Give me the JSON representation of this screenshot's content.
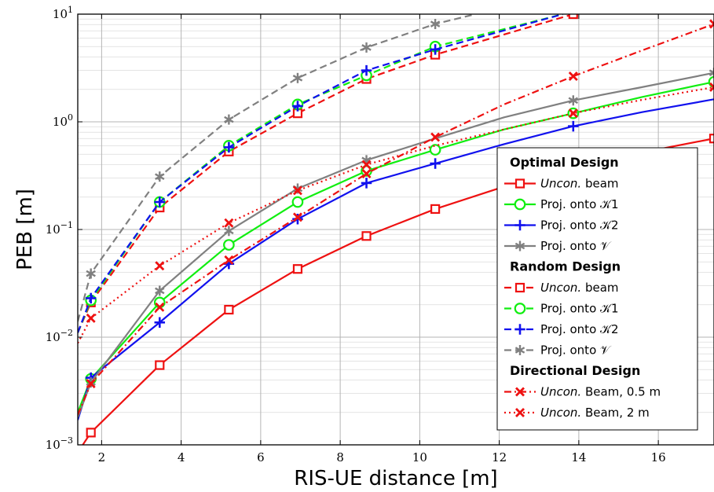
{
  "chart_data": {
    "type": "line",
    "xlabel": "RIS-UE distance [m]",
    "ylabel": "PEB [m]",
    "xlim": [
      1.4,
      17.4
    ],
    "ylim": [
      0.001,
      10
    ],
    "yscale": "log",
    "grid": "major and minor",
    "legend_placement": "bottom-right",
    "x_ticks": [
      "2",
      "4",
      "6",
      "8",
      "10",
      "12",
      "14",
      "16"
    ],
    "y_ticks": [
      {
        "base": "10",
        "exp": "−3"
      },
      {
        "base": "10",
        "exp": "−2"
      },
      {
        "base": "10",
        "exp": "−1"
      },
      {
        "base": "10",
        "exp": "0"
      },
      {
        "base": "10",
        "exp": "1"
      }
    ],
    "legend": [
      {
        "kind": "heading",
        "label": "Optimal Design"
      },
      {
        "kind": "entry",
        "label_italic": "Uncon.",
        "label": " beam",
        "series": 0
      },
      {
        "kind": "entry",
        "label": "Proj. onto 𝒦1",
        "series": 1
      },
      {
        "kind": "entry",
        "label": "Proj. onto 𝒦2",
        "series": 2
      },
      {
        "kind": "entry",
        "label": "Proj. onto 𝒱",
        "series": 3
      },
      {
        "kind": "heading",
        "label": "Random Design"
      },
      {
        "kind": "entry",
        "label_italic": "Uncon.",
        "label": " beam",
        "series": 4
      },
      {
        "kind": "entry",
        "label": "Proj. onto 𝒦1",
        "series": 5
      },
      {
        "kind": "entry",
        "label": "Proj. onto 𝒦2",
        "series": 6
      },
      {
        "kind": "entry",
        "label": "Proj. onto 𝒱",
        "series": 7
      },
      {
        "kind": "heading",
        "label": "Directional Design"
      },
      {
        "kind": "entry",
        "label_italic": "Uncon.",
        "label": " Beam, 0.5 m",
        "series": 8
      },
      {
        "kind": "entry",
        "label_italic": "Uncon.",
        "label": " Beam, 2 m",
        "series": 9
      }
    ],
    "series": [
      {
        "group": "Optimal Design",
        "color": "#ee1111",
        "dash": "solid",
        "marker": "square",
        "x": [
          1.4,
          1.73,
          3.46,
          5.2,
          6.93,
          8.66,
          10.39,
          12.12,
          13.86,
          15.59,
          17.4
        ],
        "y": [
          0.00085,
          0.0013,
          0.0055,
          0.018,
          0.043,
          0.087,
          0.155,
          0.25,
          0.37,
          0.52,
          0.7
        ],
        "markers": [
          1,
          2,
          3,
          4,
          5,
          6,
          10
        ]
      },
      {
        "group": "Optimal Design",
        "color": "#11ee11",
        "dash": "solid",
        "marker": "circle",
        "x": [
          1.4,
          1.73,
          3.46,
          5.2,
          6.93,
          8.66,
          10.39,
          12.12,
          13.86,
          15.59,
          17.4
        ],
        "y": [
          0.002,
          0.0041,
          0.021,
          0.072,
          0.18,
          0.35,
          0.55,
          0.85,
          1.2,
          1.7,
          2.35
        ],
        "markers": [
          1,
          2,
          3,
          4,
          5,
          6,
          8,
          10
        ]
      },
      {
        "group": "Optimal Design",
        "color": "#1111ee",
        "dash": "solid",
        "marker": "plus",
        "x": [
          1.4,
          1.73,
          3.46,
          5.2,
          6.93,
          8.66,
          10.39,
          12.12,
          13.86,
          15.59,
          17.4
        ],
        "y": [
          0.0017,
          0.0042,
          0.0137,
          0.048,
          0.125,
          0.27,
          0.41,
          0.62,
          0.91,
          1.23,
          1.62
        ],
        "markers": [
          1,
          2,
          3,
          4,
          5,
          6,
          8
        ]
      },
      {
        "group": "Optimal Design",
        "color": "#808080",
        "dash": "solid",
        "marker": "star",
        "x": [
          1.4,
          1.73,
          3.46,
          5.2,
          6.93,
          8.66,
          10.39,
          12.12,
          13.86,
          15.59,
          17.4
        ],
        "y": [
          0.0018,
          0.0038,
          0.027,
          0.097,
          0.24,
          0.44,
          0.7,
          1.1,
          1.58,
          2.1,
          2.85
        ],
        "markers": [
          1,
          2,
          3,
          4,
          5,
          8,
          10
        ]
      },
      {
        "group": "Random Design",
        "color": "#ee1111",
        "dash": "dashed",
        "marker": "square",
        "x": [
          1.4,
          1.73,
          3.46,
          5.2,
          6.93,
          8.66,
          10.39,
          13.86
        ],
        "y": [
          0.011,
          0.021,
          0.16,
          0.53,
          1.2,
          2.5,
          4.2,
          10.0
        ],
        "markers": [
          1,
          2,
          3,
          4,
          5,
          6,
          7
        ]
      },
      {
        "group": "Random Design",
        "color": "#11ee11",
        "dash": "dashed",
        "marker": "circle",
        "x": [
          1.4,
          1.73,
          3.46,
          5.2,
          6.93,
          8.66,
          10.39,
          13.6
        ],
        "y": [
          0.011,
          0.022,
          0.18,
          0.6,
          1.45,
          2.7,
          5.0,
          10.0
        ],
        "markers": [
          1,
          2,
          3,
          4,
          5,
          6
        ]
      },
      {
        "group": "Random Design",
        "color": "#1111ee",
        "dash": "dashed",
        "marker": "plus",
        "x": [
          1.4,
          1.73,
          3.46,
          5.2,
          6.93,
          8.66,
          10.39,
          13.6
        ],
        "y": [
          0.011,
          0.023,
          0.18,
          0.58,
          1.4,
          3.0,
          4.7,
          10.0
        ],
        "markers": [
          1,
          2,
          3,
          4,
          5,
          6
        ]
      },
      {
        "group": "Random Design",
        "color": "#808080",
        "dash": "dashed",
        "marker": "star",
        "x": [
          1.4,
          1.73,
          3.46,
          5.2,
          6.93,
          8.66,
          10.39,
          11.4
        ],
        "y": [
          0.014,
          0.039,
          0.31,
          1.05,
          2.55,
          4.9,
          8.1,
          10.0
        ],
        "markers": [
          1,
          2,
          3,
          4,
          5,
          6
        ]
      },
      {
        "group": "Directional Design",
        "color": "#ee1111",
        "dash": "dashdot",
        "marker": "x",
        "x": [
          1.4,
          1.73,
          3.46,
          5.2,
          6.93,
          8.66,
          10.39,
          12.12,
          13.86,
          15.59,
          17.4
        ],
        "y": [
          0.0019,
          0.0037,
          0.019,
          0.052,
          0.13,
          0.33,
          0.72,
          1.45,
          2.65,
          4.6,
          8.1
        ],
        "markers": [
          1,
          2,
          3,
          4,
          5,
          6,
          8,
          10
        ]
      },
      {
        "group": "Directional Design",
        "color": "#ee1111",
        "dash": "dotted",
        "marker": "x",
        "x": [
          1.4,
          1.73,
          3.46,
          5.2,
          6.93,
          8.66,
          10.39,
          12.12,
          13.86,
          15.59,
          17.4
        ],
        "y": [
          0.0088,
          0.015,
          0.046,
          0.115,
          0.23,
          0.4,
          0.6,
          0.85,
          1.2,
          1.6,
          2.1
        ],
        "markers": [
          1,
          2,
          3,
          4,
          5,
          8,
          10
        ]
      }
    ]
  }
}
